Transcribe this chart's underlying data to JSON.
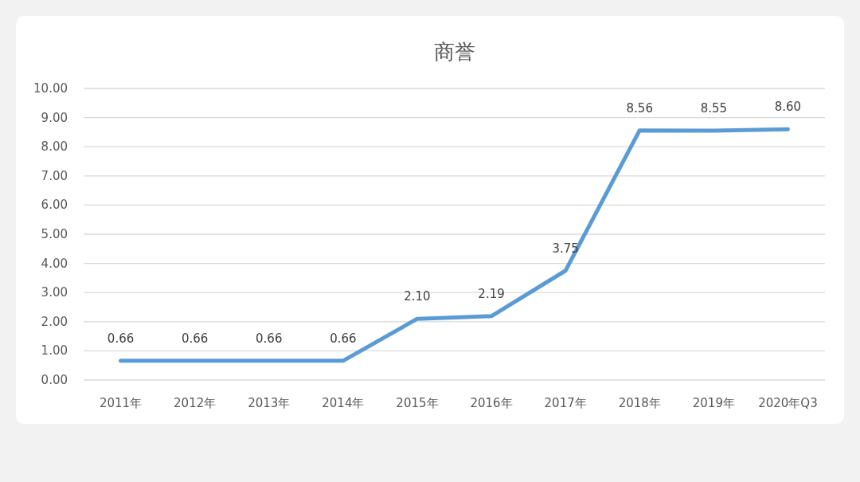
{
  "chart_data": {
    "type": "line",
    "title": "商誉",
    "categories": [
      "2011年",
      "2012年",
      "2013年",
      "2014年",
      "2015年",
      "2016年",
      "2017年",
      "2018年",
      "2019年",
      "2020年Q3"
    ],
    "series": [
      {
        "color": "#5b9bd5",
        "values": [
          0.66,
          0.66,
          0.66,
          0.66,
          2.1,
          2.19,
          3.75,
          8.56,
          8.55,
          8.6
        ],
        "value_labels": [
          "0.66",
          "0.66",
          "0.66",
          "0.66",
          "2.10",
          "2.19",
          "3.75",
          "8.56",
          "8.55",
          "8.60"
        ]
      }
    ],
    "ylim": [
      0,
      10
    ],
    "yticks": [
      {
        "value": 0,
        "label": "0.00"
      },
      {
        "value": 1,
        "label": "1.00"
      },
      {
        "value": 2,
        "label": "2.00"
      },
      {
        "value": 3,
        "label": "3.00"
      },
      {
        "value": 4,
        "label": "4.00"
      },
      {
        "value": 5,
        "label": "5.00"
      },
      {
        "value": 6,
        "label": "6.00"
      },
      {
        "value": 7,
        "label": "7.00"
      },
      {
        "value": 8,
        "label": "8.00"
      },
      {
        "value": 9,
        "label": "9.00"
      },
      {
        "value": 10,
        "label": "10.00"
      }
    ],
    "grid": "y",
    "marker": "none",
    "line_style": "solid"
  }
}
